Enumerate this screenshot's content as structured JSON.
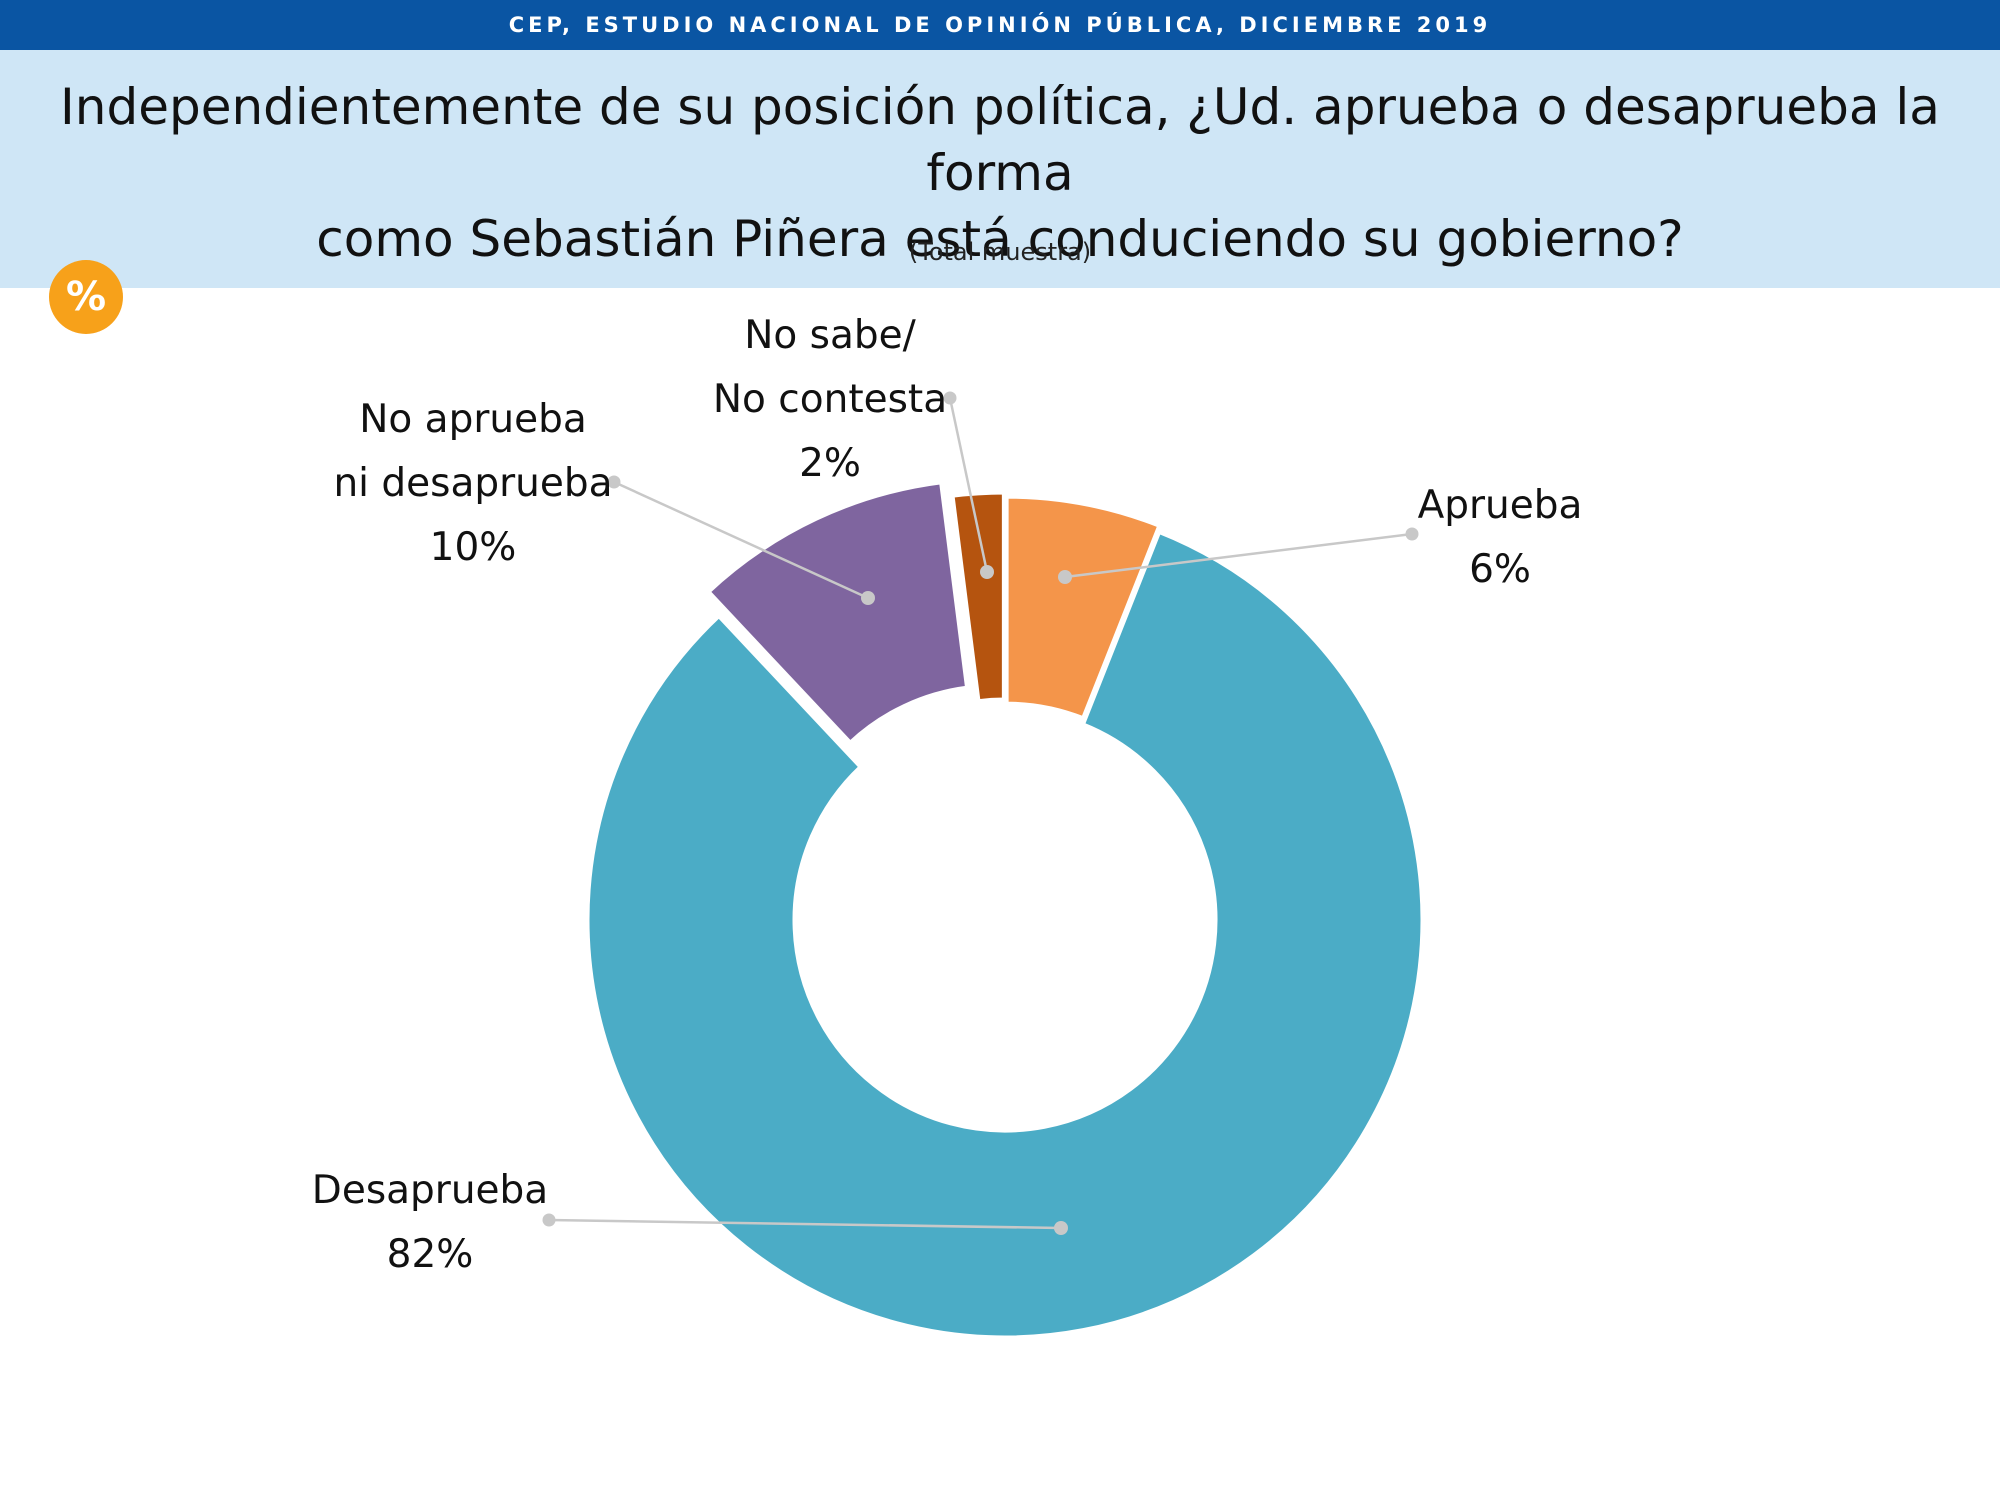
{
  "header": {
    "source": "CEP, ESTUDIO NACIONAL DE OPINIÓN PÚBLICA, DICIEMBRE 2019",
    "question_line1": "Independientemente de su posición política, ¿Ud. aprueba o desaprueba la forma",
    "question_line2": "como Sebastián Piñera está conduciendo su gobierno?",
    "subtitle": "(Total muestra)",
    "badge": "%"
  },
  "chart_data": {
    "type": "pie",
    "variant": "donut",
    "unit": "%",
    "slices": [
      {
        "label": "Aprueba",
        "value": 6,
        "value_label": "6%",
        "color": "#f4954a"
      },
      {
        "label": "Desaprueba",
        "value": 82,
        "value_label": "82%",
        "color": "#4bacc6"
      },
      {
        "label": "No aprueba ni desaprueba",
        "label_lines": [
          "No aprueba",
          "ni desaprueba"
        ],
        "value": 10,
        "value_label": "10%",
        "color": "#7f659f"
      },
      {
        "label": "No sabe/ No contesta",
        "label_lines": [
          "No sabe/",
          "No contesta"
        ],
        "value": 2,
        "value_label": "2%",
        "color": "#b5540f"
      }
    ]
  }
}
